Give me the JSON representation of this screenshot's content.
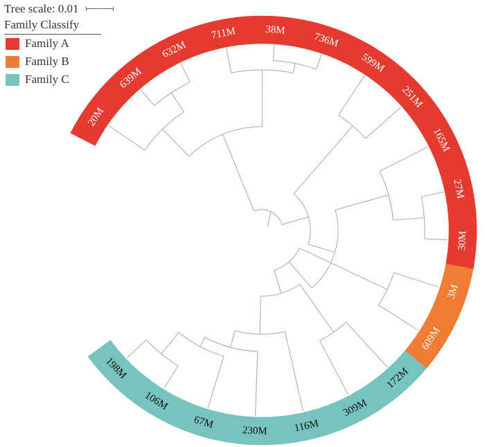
{
  "tree_scale": {
    "label": "Tree scale:",
    "value": "0.01"
  },
  "legend": {
    "title": "Family Classify",
    "items": [
      {
        "label": "Family A",
        "color": "#e43a2f"
      },
      {
        "label": "Family B",
        "color": "#f07d34"
      },
      {
        "label": "Family C",
        "color": "#76c4bd"
      }
    ]
  },
  "leaves": [
    {
      "label": "20M",
      "family": "A"
    },
    {
      "label": "639M",
      "family": "A"
    },
    {
      "label": "632M",
      "family": "A"
    },
    {
      "label": "711M",
      "family": "A"
    },
    {
      "label": "38M",
      "family": "A"
    },
    {
      "label": "736M",
      "family": "A"
    },
    {
      "label": "599M",
      "family": "A"
    },
    {
      "label": "251M",
      "family": "A"
    },
    {
      "label": "165M",
      "family": "A"
    },
    {
      "label": "27M",
      "family": "A"
    },
    {
      "label": "30M",
      "family": "A"
    },
    {
      "label": "3M",
      "family": "B"
    },
    {
      "label": "609M",
      "family": "B"
    },
    {
      "label": "172M",
      "family": "C"
    },
    {
      "label": "309M",
      "family": "C"
    },
    {
      "label": "116M",
      "family": "C"
    },
    {
      "label": "230M",
      "family": "C"
    },
    {
      "label": "67M",
      "family": "C"
    },
    {
      "label": "106M",
      "family": "C"
    },
    {
      "label": "198M",
      "family": "C"
    }
  ]
}
